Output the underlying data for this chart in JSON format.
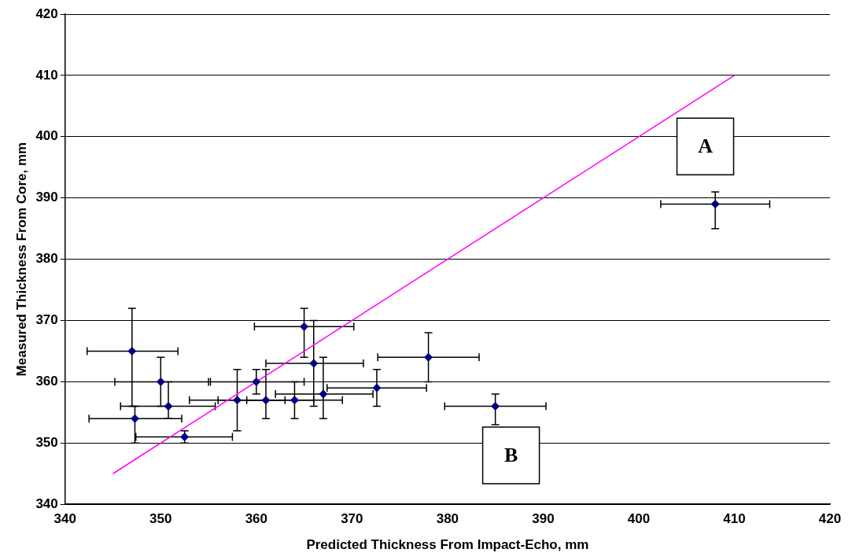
{
  "chart_data": {
    "type": "scatter",
    "xlabel": "Predicted Thickness From Impact-Echo, mm",
    "ylabel": "Measured Thickness From Core, mm",
    "xlim": [
      340,
      420
    ],
    "xticks": [
      340,
      350,
      360,
      370,
      380,
      390,
      400,
      410,
      420
    ],
    "ylim": [
      340,
      420
    ],
    "yticks": [
      340,
      350,
      360,
      370,
      380,
      390,
      400,
      410,
      420
    ],
    "grid": "y",
    "legend": false,
    "marker": "diamond",
    "series": [
      {
        "color": "#000080",
        "x": [
          347,
          347.3,
          350,
          350.8,
          352.5,
          358,
          360,
          361,
          364,
          365,
          366,
          367,
          372.6,
          378,
          385,
          408
        ],
        "values": [
          365,
          354,
          360,
          356,
          351,
          357,
          360,
          357,
          357,
          369,
          363,
          358,
          359,
          364,
          356,
          389
        ],
        "errors": [
          [
            356,
            372
          ],
          [
            350,
            356
          ],
          [
            356,
            364
          ],
          [
            354,
            360
          ],
          [
            350,
            352
          ],
          [
            352,
            362
          ],
          [
            358,
            362
          ],
          [
            354,
            362
          ],
          [
            354,
            360
          ],
          [
            364,
            372
          ],
          [
            356,
            370
          ],
          [
            354,
            364
          ],
          [
            356,
            362
          ],
          [
            360,
            368
          ],
          [
            353,
            358
          ],
          [
            385,
            391
          ]
        ],
        "xerrors": [
          [
            342.3,
            351.8
          ],
          [
            342.5,
            352.2
          ],
          [
            345.2,
            355
          ],
          [
            345.8,
            355.7
          ],
          [
            347.4,
            357.5
          ],
          [
            353,
            363
          ],
          [
            355.2,
            365
          ],
          [
            356,
            366
          ],
          [
            359,
            369
          ],
          [
            359.8,
            370.2
          ],
          [
            361,
            371.2
          ],
          [
            362,
            372.2
          ],
          [
            367.4,
            377.8
          ],
          [
            372.7,
            383.3
          ],
          [
            379.7,
            390.3
          ],
          [
            402.3,
            413.7
          ]
        ]
      },
      {
        "type": "line",
        "color": "#ff00ff",
        "marker": "none",
        "x": [
          345,
          410
        ],
        "values": [
          345,
          410
        ]
      }
    ],
    "annotations": [
      "A",
      "B"
    ]
  }
}
